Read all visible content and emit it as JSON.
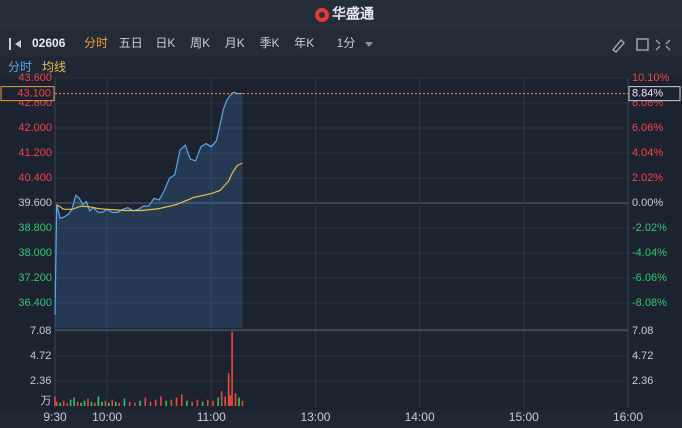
{
  "header": {
    "title": "华盛通"
  },
  "toolbar": {
    "code": "02606",
    "tabs": [
      "分时",
      "五日",
      "日K",
      "周K",
      "月K",
      "季K",
      "年K"
    ],
    "active_tab": 0,
    "interval": "1分"
  },
  "chart_data": [
    {
      "type": "line",
      "series": [
        {
          "name": "分时",
          "color": "#5aa9f0",
          "area": true,
          "x": [
            "9:30",
            "9:31",
            "9:33",
            "9:35",
            "9:38",
            "9:40",
            "9:42",
            "9:44",
            "9:46",
            "9:48",
            "9:50",
            "9:52",
            "9:55",
            "9:58",
            "10:00",
            "10:03",
            "10:06",
            "10:09",
            "10:12",
            "10:15",
            "10:18",
            "10:21",
            "10:24",
            "10:27",
            "10:30",
            "10:33",
            "10:36",
            "10:39",
            "10:42",
            "10:45",
            "10:48",
            "10:51",
            "10:54",
            "10:57",
            "11:00",
            "11:03",
            "11:05",
            "11:07",
            "11:09",
            "11:11",
            "11:13",
            "11:15",
            "11:18"
          ],
          "values": [
            36.02,
            39.55,
            39.1,
            39.15,
            39.25,
            39.45,
            39.85,
            39.75,
            39.55,
            39.65,
            39.35,
            39.45,
            39.3,
            39.32,
            39.4,
            39.3,
            39.3,
            39.4,
            39.45,
            39.35,
            39.4,
            39.5,
            39.5,
            39.75,
            39.7,
            40.0,
            40.4,
            40.5,
            41.3,
            41.45,
            41.0,
            40.95,
            41.4,
            41.5,
            41.4,
            41.6,
            42.1,
            42.6,
            42.9,
            43.05,
            43.15,
            43.1,
            43.1
          ]
        },
        {
          "name": "均线",
          "color": "#e8c14a",
          "x": [
            "9:31",
            "9:35",
            "9:40",
            "9:45",
            "9:50",
            "9:55",
            "10:00",
            "10:10",
            "10:20",
            "10:30",
            "10:40",
            "10:50",
            "11:00",
            "11:05",
            "11:10",
            "11:12",
            "11:15",
            "11:18"
          ],
          "values": [
            39.55,
            39.4,
            39.4,
            39.5,
            39.48,
            39.42,
            39.4,
            39.36,
            39.36,
            39.42,
            39.55,
            39.78,
            39.9,
            40.0,
            40.3,
            40.55,
            40.8,
            40.88
          ]
        }
      ],
      "xlim": [
        "9:30",
        "16:00"
      ],
      "break": [
        "12:00",
        "13:00"
      ],
      "ylim": [
        35.6,
        43.6
      ],
      "yticks": [
        {
          "value": 36.4,
          "label": "36.400"
        },
        {
          "value": 37.2,
          "label": "37.200"
        },
        {
          "value": 38.0,
          "label": "38.000"
        },
        {
          "value": 38.8,
          "label": "38.800"
        },
        {
          "value": 39.6,
          "label": "39.600"
        },
        {
          "value": 40.4,
          "label": "40.400"
        },
        {
          "value": 41.2,
          "label": "41.200"
        },
        {
          "value": 42.0,
          "label": "42.000"
        },
        {
          "value": 42.8,
          "label": "42.800"
        },
        {
          "value": 43.6,
          "label": "43.600"
        }
      ],
      "y2lim": [
        -10.1,
        10.1
      ],
      "y2ticks": [
        {
          "value": -8.08,
          "label": "-8.08%"
        },
        {
          "value": -6.06,
          "label": "-6.06%"
        },
        {
          "value": -4.04,
          "label": "-4.04%"
        },
        {
          "value": -2.02,
          "label": "-2.02%"
        },
        {
          "value": 0,
          "label": "0.00%"
        },
        {
          "value": 2.02,
          "label": "2.02%"
        },
        {
          "value": 4.04,
          "label": "4.04%"
        },
        {
          "value": 6.06,
          "label": "6.06%"
        },
        {
          "value": 8.08,
          "label": "8.08%"
        },
        {
          "value": 10.1,
          "label": "10.10%"
        }
      ],
      "last": {
        "value": 43.1,
        "label": "43.100",
        "change": 8.84,
        "change_label": "8.84%"
      }
    },
    {
      "type": "bar",
      "unit": "万",
      "xlim": [
        "9:30",
        "16:00"
      ],
      "break": [
        "12:00",
        "13:00"
      ],
      "x": [
        "9:30",
        "9:31",
        "9:33",
        "9:35",
        "9:37",
        "9:39",
        "9:41",
        "9:43",
        "9:45",
        "9:47",
        "9:49",
        "9:51",
        "9:53",
        "9:55",
        "9:57",
        "9:59",
        "10:01",
        "10:03",
        "10:05",
        "10:07",
        "10:10",
        "10:13",
        "10:16",
        "10:19",
        "10:22",
        "10:25",
        "10:28",
        "10:31",
        "10:34",
        "10:37",
        "10:40",
        "10:43",
        "10:46",
        "10:49",
        "10:52",
        "10:55",
        "10:58",
        "11:01",
        "11:04",
        "11:06",
        "11:08",
        "11:10",
        "11:11",
        "11:12",
        "11:14",
        "11:16",
        "11:18"
      ],
      "values": [
        0.9,
        0.4,
        0.3,
        0.5,
        0.3,
        0.6,
        0.8,
        0.4,
        0.3,
        0.5,
        0.7,
        0.4,
        0.3,
        0.9,
        0.4,
        0.5,
        0.3,
        0.6,
        0.4,
        0.3,
        0.7,
        0.4,
        0.3,
        0.5,
        0.8,
        0.4,
        0.6,
        0.9,
        0.5,
        0.6,
        0.8,
        1.1,
        0.5,
        0.4,
        0.6,
        0.4,
        0.6,
        0.5,
        0.8,
        1.4,
        0.9,
        3.1,
        1.0,
        7.0,
        1.2,
        0.8,
        0.5
      ],
      "colors": [
        "#e74c3c",
        "#e74c3c",
        "#2ecc71",
        "#e74c3c",
        "#e74c3c",
        "#2ecc71",
        "#2ecc71",
        "#e74c3c",
        "#2ecc71",
        "#2ecc71",
        "#e74c3c",
        "#2ecc71",
        "#e74c3c",
        "#2ecc71",
        "#2ecc71",
        "#e74c3c",
        "#2ecc71",
        "#e74c3c",
        "#2ecc71",
        "#e74c3c",
        "#2ecc71",
        "#e74c3c",
        "#e74c3c",
        "#2ecc71",
        "#e74c3c",
        "#e74c3c",
        "#e74c3c",
        "#e74c3c",
        "#2ecc71",
        "#e74c3c",
        "#e74c3c",
        "#e74c3c",
        "#2ecc71",
        "#e74c3c",
        "#e74c3c",
        "#2ecc71",
        "#e74c3c",
        "#e74c3c",
        "#2ecc71",
        "#e74c3c",
        "#e74c3c",
        "#e74c3c",
        "#e74c3c",
        "#e74c3c",
        "#e74c3c",
        "#2ecc71",
        "#e74c3c"
      ],
      "ylim": [
        0,
        7.08
      ],
      "yticks": [
        2.36,
        4.72,
        7.08
      ],
      "xticks": [
        "9:30",
        "10:00",
        "11:00",
        "13:00",
        "14:00",
        "15:00",
        "16:00"
      ]
    }
  ]
}
